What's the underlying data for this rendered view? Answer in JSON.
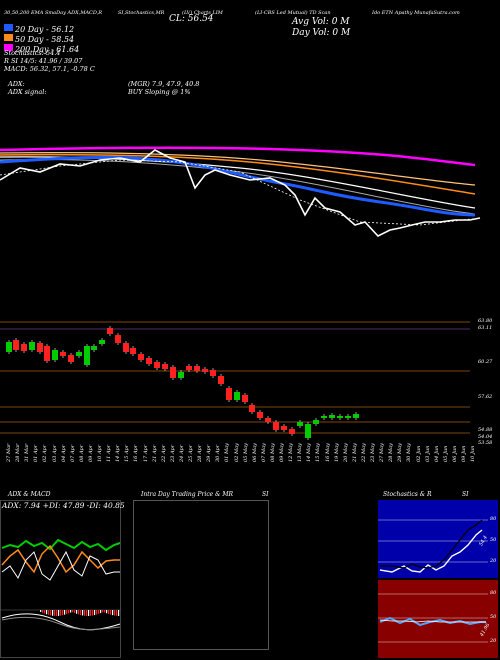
{
  "header": {
    "seg1": "30,50,200 EMA SmaDay ADX,MACD,R",
    "seg2": "SI,Stochastics,MR",
    "seg3": "(LV) Charts LIM",
    "seg4": "(LI-CBS Led Mutual) TD Scan",
    "seg5": "Ido ETN Apathy MunafaSutra.com",
    "close_label": "CL: 56.54"
  },
  "legend": {
    "ma20": "20 Day - 56.12",
    "ma50": "50 Day - 58.54",
    "ma200": "200 Day - 61.64",
    "stoch": "Stochastics: 54.4",
    "rsi": "R              SI 14/5: 41.96 / 39.07",
    "macd": "MACD: 56.32, 57.1, -0.78  C"
  },
  "volume": {
    "avg": "Avg Vol: 0   M",
    "day": "Day Vol: 0   M"
  },
  "signals": {
    "adx_label": "ADX:",
    "adx_value": "(MGR) 7.9, 47.9, 40.8",
    "adx_signal_label": "ADX  signal:",
    "signal_text": "BUY Sloping @ 1%"
  },
  "price_axis": [
    "63.80",
    "63.11",
    "60.27",
    "57.62",
    "54.88",
    "54.04",
    "53.58"
  ],
  "dates": [
    "27 Mar",
    "28 Mar",
    "31 Mar",
    "01 Apr",
    "02 Apr",
    "03 Apr",
    "04 Apr",
    "07 Apr",
    "08 Apr",
    "09 Apr",
    "10 Apr",
    "11 Apr",
    "14 Apr",
    "15 Apr",
    "16 Apr",
    "17 Apr",
    "21 Apr",
    "22 Apr",
    "23 Apr",
    "24 Apr",
    "25 Apr",
    "28 Apr",
    "29 Apr",
    "30 Apr",
    "01 May",
    "02 May",
    "05 May",
    "06 May",
    "07 May",
    "08 May",
    "09 May",
    "12 May",
    "13 May",
    "14 May",
    "15 May",
    "16 May",
    "19 May",
    "20 May",
    "21 May",
    "22 May",
    "23 May",
    "27 May",
    "28 May",
    "29 May",
    "30 May",
    "02 Jun",
    "03 Jun",
    "04 Jun",
    "05 Jun",
    "06 Jun",
    "09 Jun",
    "10 Jun"
  ],
  "panels": {
    "adx_title": "ADX  & MACD",
    "adx_values": "ADX: 7.94  +DI: 47.89  -DI: 40.85",
    "mr_title": "Intra Day Trading Price  & MR",
    "si_title": "SI",
    "stoch_title": "Stochastics & R",
    "stoch_si": "SI",
    "stoch_ticks": [
      "80",
      "50",
      "20"
    ],
    "rsi_ticks": [
      "80",
      "50",
      "20"
    ],
    "stoch_last": "54.4",
    "rsi_last": "41.96"
  },
  "colors": {
    "ma20": "#1f5cff",
    "ma50": "#ff8c1a",
    "ma200": "#ff00ff",
    "up": "#00cc00",
    "down": "#ff2020"
  }
}
